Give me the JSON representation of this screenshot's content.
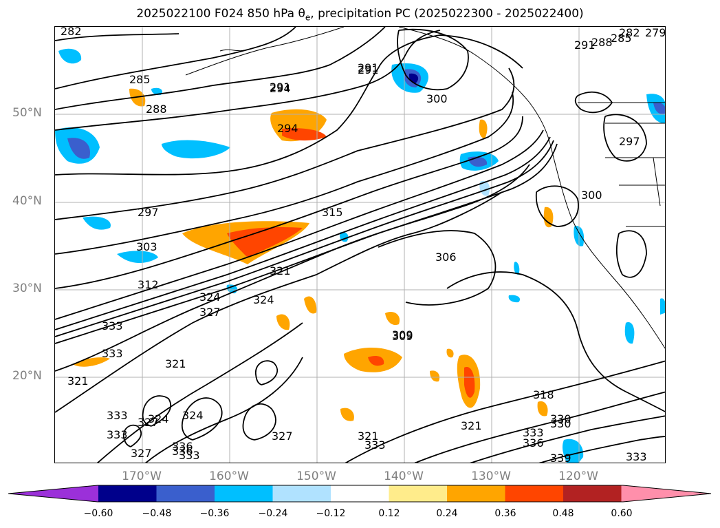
{
  "title": {
    "prefix": "2025022100 F024 850 hPa ",
    "theta": "θ",
    "theta_sub": "e",
    "suffix": ", precipitation PC (2025022300 - 2025022400)"
  },
  "lat_labels": [
    "50°N",
    "40°N",
    "30°N",
    "20°N"
  ],
  "lon_labels": [
    "170°W",
    "160°W",
    "150°W",
    "140°W",
    "130°W",
    "120°W"
  ],
  "colorbar": {
    "colors": [
      "#9b30d9",
      "#00008b",
      "#3a5fcd",
      "#00bfff",
      "#b0e2ff",
      "#ffffff",
      "#ffec8b",
      "#ffa500",
      "#ff4500",
      "#b22222",
      "#ff8fab"
    ],
    "ticks": [
      "−0.60",
      "−0.48",
      "−0.36",
      "−0.24",
      "−0.12",
      "0.12",
      "0.24",
      "0.36",
      "0.48",
      "0.60"
    ]
  },
  "contour_labels": [
    "282",
    "285",
    "288",
    "291",
    "294",
    "291",
    "294",
    "297",
    "300",
    "303",
    "306",
    "309",
    "312",
    "315",
    "318",
    "321",
    "321",
    "324",
    "324",
    "327",
    "327",
    "330",
    "333",
    "333",
    "336",
    "336",
    "339",
    "297",
    "300",
    "288",
    "285",
    "282",
    "279",
    "291",
    "330",
    "333",
    "333",
    "333",
    "321",
    "324",
    "327",
    "321",
    "321",
    "333",
    "336",
    "333",
    "327",
    "324",
    "333",
    "309",
    "291"
  ]
}
